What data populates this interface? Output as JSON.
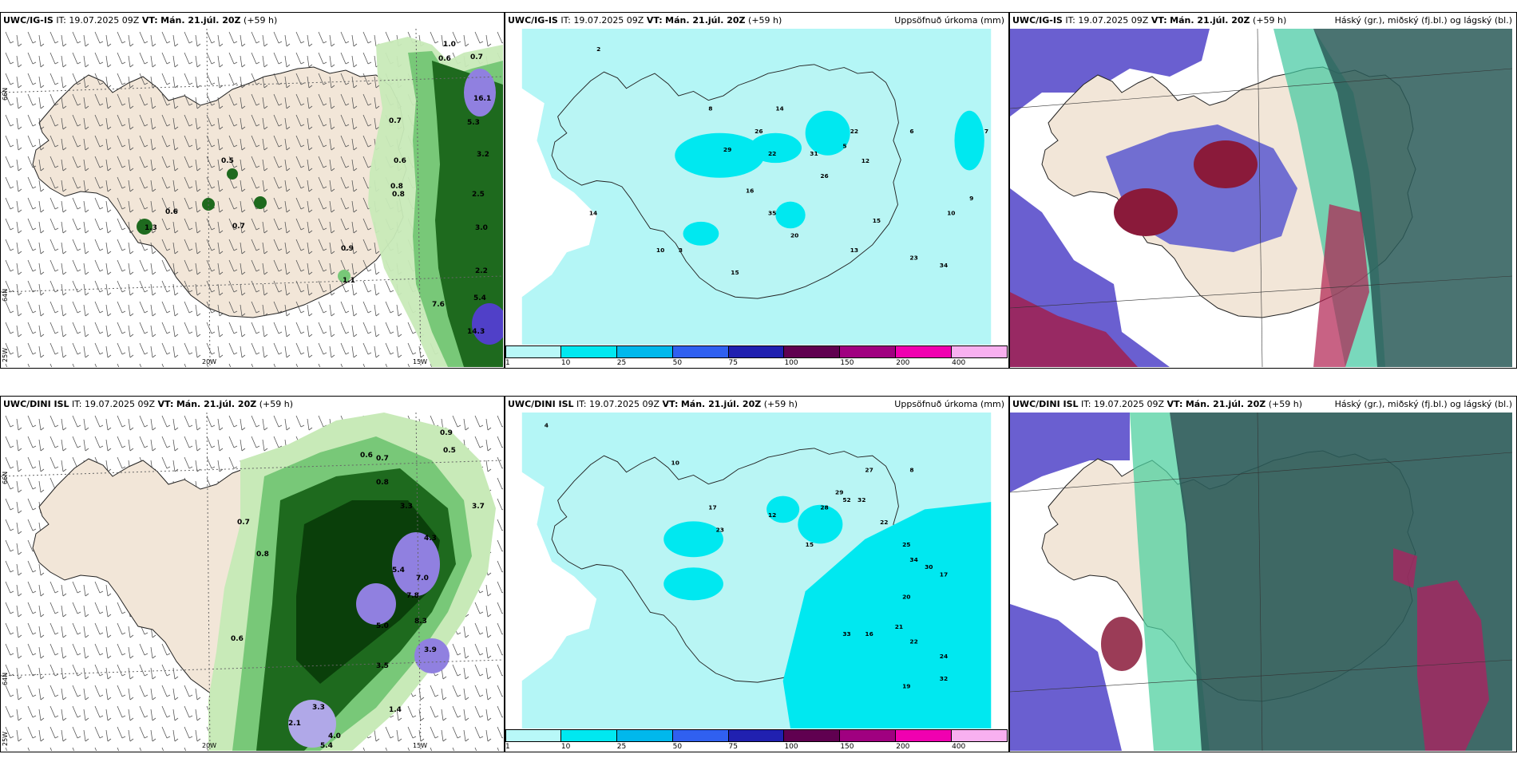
{
  "panels": [
    {
      "model": "UWC/IG-IS",
      "it_label": "IT:",
      "it": "19.07.2025 09Z",
      "vt_label": "VT:",
      "vt": "Mán. 21.júl. 20Z",
      "lead": "(+59 h)",
      "title": ""
    },
    {
      "model": "UWC/IG-IS",
      "it_label": "IT:",
      "it": "19.07.2025 09Z",
      "vt_label": "VT:",
      "vt": "Mán. 21.júl. 20Z",
      "lead": "(+59 h)",
      "title": "Uppsöfnuð úrkoma (mm)"
    },
    {
      "model": "UWC/IG-IS",
      "it_label": "IT:",
      "it": "19.07.2025 09Z",
      "vt_label": "VT:",
      "vt": "Mán. 21.júl. 20Z",
      "lead": "(+59 h)",
      "title": "Háský (gr.), miðský (fj.bl.) og lágský (bl.)"
    },
    {
      "model": "UWC/DINI ISL",
      "it_label": "IT:",
      "it": "19.07.2025 09Z",
      "vt_label": "VT:",
      "vt": "Mán. 21.júl. 20Z",
      "lead": "(+59 h)",
      "title": ""
    },
    {
      "model": "UWC/DINI ISL",
      "it_label": "IT:",
      "it": "19.07.2025 09Z",
      "vt_label": "VT:",
      "vt": "Mán. 21.júl. 20Z",
      "lead": "(+59 h)",
      "title": "Uppsöfnuð úrkoma (mm)"
    },
    {
      "model": "UWC/DINI ISL",
      "it_label": "IT:",
      "it": "19.07.2025 09Z",
      "vt_label": "VT:",
      "vt": "Mán. 21.júl. 20Z",
      "lead": "(+59 h)",
      "title": "Háský (gr.), miðský (fj.bl.) og lágský (bl.)"
    }
  ],
  "grid_labels": {
    "lat66": "66N",
    "lat64": "64N",
    "lon25": "25W",
    "lon20": "20W",
    "lon15": "15W"
  },
  "colorbar": {
    "labels": [
      "1",
      "10",
      "25",
      "50",
      "75",
      "100",
      "150",
      "200",
      "400"
    ],
    "colors": [
      "#b8f8f8",
      "#00e8f0",
      "#00b8ec",
      "#3060f0",
      "#2020b0",
      "#600050",
      "#a00080",
      "#f000b0",
      "#f8b0f0"
    ]
  },
  "precip_top": [
    "0.5",
    "0.6",
    "0.8",
    "0.7",
    "1.3",
    "0.9",
    "1.1",
    "0.7",
    "0.6",
    "0.8",
    "1.0",
    "0.6",
    "0.7",
    "16.1",
    "5.3",
    "3.2",
    "2.5",
    "3.0",
    "2.2",
    "5.4",
    "7.6",
    "14.3"
  ],
  "precip_bottom": [
    "0.9",
    "0.5",
    "0.7",
    "0.6",
    "0.8",
    "3.3",
    "4.3",
    "3.7",
    "5.4",
    "7.0",
    "7.8",
    "8.3",
    "3.9",
    "5.0",
    "3.5",
    "1.4",
    "3.3",
    "2.1",
    "4.0",
    "5.4",
    "0.8",
    "0.7",
    "0.6"
  ],
  "accum_top": [
    "2",
    "8",
    "14",
    "26",
    "29",
    "22",
    "31",
    "22",
    "12",
    "26",
    "35",
    "20",
    "15",
    "13",
    "34",
    "23",
    "16",
    "15",
    "10",
    "14",
    "7",
    "9",
    "5",
    "6",
    "3",
    "10"
  ],
  "accum_bottom": [
    "4",
    "10",
    "17",
    "23",
    "12",
    "15",
    "28",
    "29",
    "32",
    "27",
    "52",
    "22",
    "25",
    "34",
    "30",
    "17",
    "33",
    "20",
    "21",
    "22",
    "19",
    "16",
    "24",
    "32",
    "8"
  ],
  "colors": {
    "land": "#f2e6d8",
    "ocean": "#ffffff",
    "sea_precip": "#b4f6f6",
    "green_light": "#c8eab8",
    "green_mid": "#78c878",
    "green_dark": "#1e6a1e",
    "green_deep": "#0a3f0a",
    "purple": "#9080e0"
  }
}
